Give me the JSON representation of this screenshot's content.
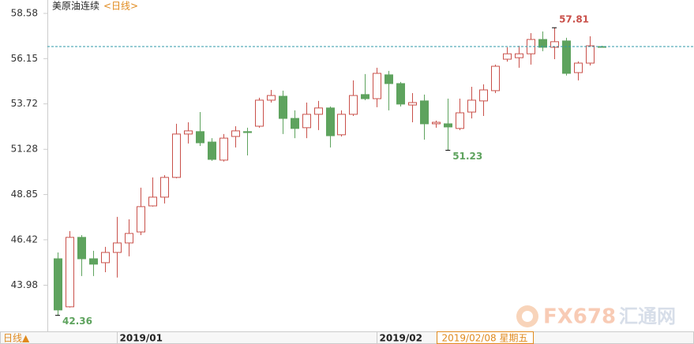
{
  "chart_data": {
    "type": "candlestick",
    "title": "美原油连续",
    "subtitle": "<日线>",
    "categories": [
      null,
      null,
      null,
      null,
      null,
      "2019/01",
      null,
      null,
      null,
      null,
      null,
      null,
      null,
      null,
      null,
      null,
      null,
      null,
      null,
      null,
      null,
      null,
      null,
      null,
      null,
      null,
      null,
      "2019/02",
      null,
      null,
      null,
      null,
      null,
      null,
      null,
      null,
      null,
      null,
      null,
      null,
      null,
      null,
      null,
      null,
      null,
      null,
      null
    ],
    "series": {
      "open": [
        45.4,
        42.82,
        46.55,
        45.4,
        45.19,
        45.74,
        46.25,
        46.84,
        48.24,
        48.71,
        49.77,
        52.1,
        52.23,
        51.67,
        50.7,
        51.97,
        52.23,
        52.52,
        53.92,
        54.13,
        52.94,
        52.44,
        53.16,
        53.5,
        52.06,
        53.16,
        54.22,
        54.0,
        55.28,
        54.81,
        53.66,
        53.88,
        52.65,
        52.65,
        52.4,
        53.28,
        53.88,
        54.43,
        56.12,
        56.2,
        56.41,
        57.18,
        56.76,
        57.1,
        55.4,
        55.91,
        56.8
      ],
      "high": [
        45.74,
        46.89,
        46.67,
        45.83,
        46.04,
        47.65,
        47.52,
        49.22,
        49.77,
        49.89,
        52.65,
        52.73,
        53.28,
        51.88,
        52.1,
        52.52,
        52.44,
        54.05,
        54.47,
        54.43,
        53.37,
        53.79,
        53.88,
        53.58,
        53.37,
        54.98,
        55.32,
        55.66,
        55.49,
        54.9,
        54.3,
        54.22,
        52.82,
        54.0,
        54.0,
        54.64,
        54.77,
        55.83,
        56.76,
        56.84,
        57.52,
        57.61,
        57.81,
        57.27,
        56.0,
        57.35,
        56.84
      ],
      "low": [
        42.36,
        42.78,
        44.47,
        44.47,
        44.68,
        44.39,
        45.53,
        46.67,
        48.2,
        48.37,
        49.72,
        51.59,
        51.46,
        50.66,
        50.62,
        51.38,
        50.95,
        52.44,
        53.79,
        52.1,
        51.88,
        51.88,
        52.31,
        51.38,
        51.97,
        53.07,
        53.92,
        53.54,
        53.37,
        53.58,
        52.73,
        51.8,
        52.44,
        51.23,
        52.31,
        52.94,
        53.07,
        54.3,
        55.99,
        55.66,
        55.83,
        56.55,
        56.12,
        55.24,
        54.98,
        55.78,
        56.76
      ],
      "close": [
        42.65,
        46.55,
        45.4,
        45.11,
        45.74,
        46.25,
        46.76,
        48.2,
        48.71,
        49.77,
        52.1,
        52.27,
        51.63,
        50.74,
        51.88,
        52.27,
        52.18,
        53.92,
        54.17,
        52.94,
        52.4,
        53.16,
        53.5,
        52.01,
        53.16,
        54.17,
        54.0,
        55.36,
        54.81,
        53.71,
        53.79,
        52.65,
        52.73,
        52.48,
        53.24,
        53.92,
        54.47,
        55.74,
        56.41,
        56.41,
        57.18,
        56.76,
        57.06,
        55.36,
        55.91,
        56.84,
        56.76
      ]
    },
    "up_color": "#c9504a",
    "down_color": "#5ea35e",
    "last_price": 56.8,
    "last_price_color": "#2f9aa8",
    "annotations": [
      57.81,
      42.36,
      51.23
    ],
    "ylim": [
      41.5,
      59.3
    ],
    "yticks": [
      43.98,
      46.42,
      48.85,
      51.28,
      53.72,
      56.15,
      58.58
    ],
    "period_label": "日线▲",
    "cursor_label": "2019/02/08 星期五",
    "watermark": [
      "FX678",
      "汇通网"
    ]
  }
}
